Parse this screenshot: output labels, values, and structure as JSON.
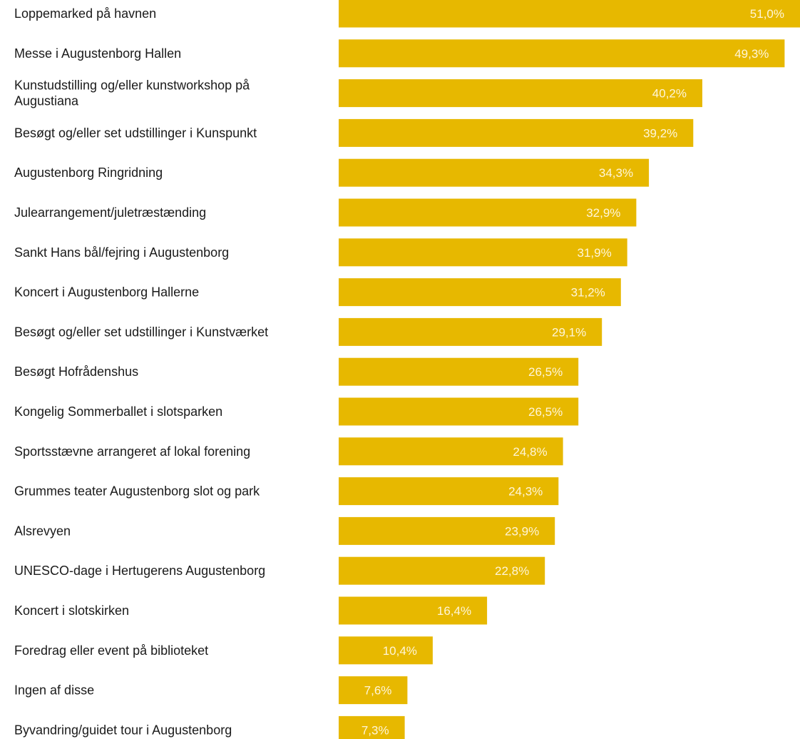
{
  "chart_data": {
    "type": "bar",
    "orientation": "horizontal",
    "bar_color": "#E7B800",
    "value_label_color": "#FFF6D9",
    "grid": false,
    "xlim": [
      0,
      51.0
    ],
    "categories": [
      "Loppemarked på havnen",
      "Messe i Augustenborg Hallen",
      [
        "Kunstudstilling og/eller kunstworkshop på",
        "Augustiana"
      ],
      "Besøgt og/eller set udstillinger i Kunspunkt",
      "Augustenborg Ringridning",
      "Julearrangement/juletræstænding",
      "Sankt Hans bål/fejring i Augustenborg",
      "Koncert i Augustenborg Hallerne",
      "Besøgt og/eller set udstillinger i Kunstværket",
      "Besøgt Hofrådenshus",
      "Kongelig Sommerballet i slotsparken",
      "Sportsstævne arrangeret af lokal forening",
      "Grummes teater Augustenborg slot og park",
      "Alsrevyen",
      "UNESCO-dage i Hertugerens Augustenborg",
      "Koncert i slotskirken",
      "Foredrag eller event på biblioteket",
      "Ingen af disse",
      "Byvandring/guidet tour i Augustenborg"
    ],
    "values": [
      51.0,
      49.3,
      40.2,
      39.2,
      34.3,
      32.9,
      31.9,
      31.2,
      29.1,
      26.5,
      26.5,
      24.8,
      24.3,
      23.9,
      22.8,
      16.4,
      10.4,
      7.6,
      7.3
    ],
    "value_labels": [
      "51,0%",
      "49,3%",
      "40,2%",
      "39,2%",
      "34,3%",
      "32,9%",
      "31,9%",
      "31,2%",
      "29,1%",
      "26,5%",
      "26,5%",
      "24,8%",
      "24,3%",
      "23,9%",
      "22,8%",
      "16,4%",
      "10,4%",
      "7,6%",
      "7,3%"
    ]
  }
}
